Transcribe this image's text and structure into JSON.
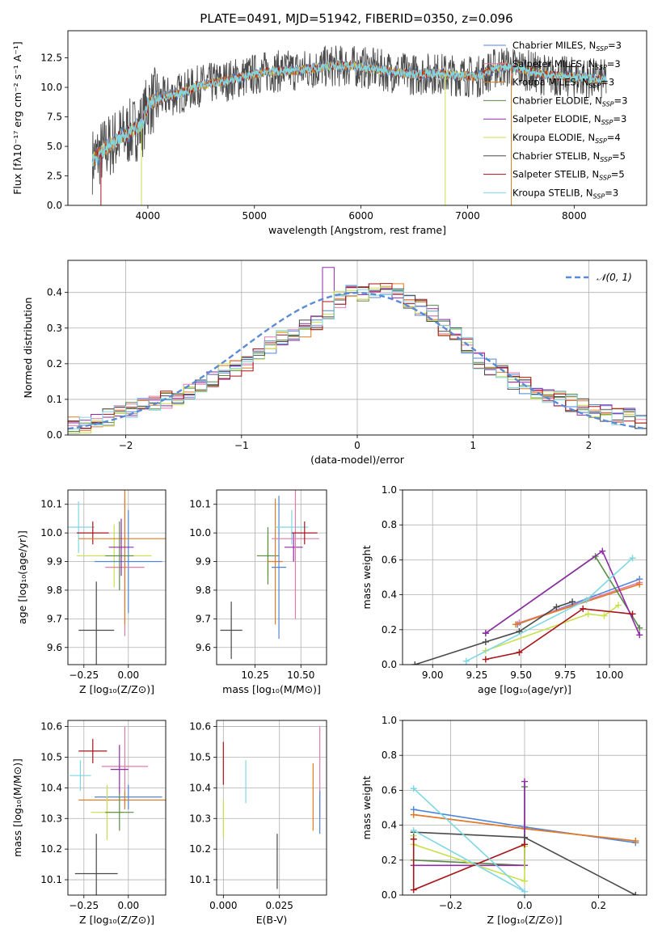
{
  "figure_title": "PLATE=0491, MJD=51942, FIBERID=0350, z=0.096",
  "colors": {
    "Chabrier MILES": "#4f86d8",
    "Salpeter MILES": "#e47aa8",
    "Kroupa MILES": "#e07b22",
    "Chabrier ELODIE": "#5a8a46",
    "Salpeter ELODIE": "#8f2aa8",
    "Kroupa ELODIE": "#c8e04c",
    "Chabrier STELIB": "#4a4a4a",
    "Salpeter STELIB": "#a8141a",
    "Kroupa STELIB": "#7ed7e2"
  },
  "chart_data": [
    {
      "id": "spectrum",
      "type": "line",
      "title": "PLATE=0491, MJD=51942, FIBERID=0350, z=0.096",
      "xlabel": "wavelength [Angstrom, rest frame]",
      "ylabel": "Flux [fλ10⁻¹⁷ erg cm⁻² s⁻¹ A⁻¹]",
      "xlim": [
        3250,
        8680
      ],
      "ylim": [
        0,
        14.8
      ],
      "xticks": [
        4000,
        5000,
        6000,
        7000,
        8000
      ],
      "yticks": [
        0.0,
        2.5,
        5.0,
        7.5,
        10.0,
        12.5
      ],
      "grid": false,
      "legend_position": "top-right",
      "legend": [
        "Chabrier MILES, N_SSP=3",
        "Salpeter MILES, N_SSP=3",
        "Kroupa MILES, N_SSP=3",
        "Chabrier ELODIE, N_SSP=3",
        "Salpeter ELODIE, N_SSP=3",
        "Kroupa ELODIE, N_SSP=4",
        "Chabrier STELIB, N_SSP=5",
        "Salpeter STELIB, N_SSP=5",
        "Kroupa STELIB, N_SSP=3"
      ],
      "continuum": {
        "x": [
          3480,
          3600,
          3750,
          3850,
          3950,
          4000,
          4100,
          4300,
          4500,
          4700,
          4900,
          5100,
          5300,
          5500,
          5700,
          5900,
          6100,
          6300,
          6500,
          6700,
          6900,
          7100,
          7300,
          7500,
          7700,
          7900,
          8100,
          8300
        ],
        "y": [
          3.8,
          4.8,
          5.8,
          6.3,
          6.9,
          8.6,
          9.0,
          9.5,
          10.2,
          10.5,
          10.9,
          11.3,
          11.4,
          11.5,
          11.8,
          11.8,
          11.6,
          11.3,
          11.1,
          11.2,
          11.0,
          10.9,
          11.8,
          11.6,
          11.1,
          10.9,
          10.8,
          10.6
        ]
      }
    },
    {
      "id": "residuals",
      "type": "bar",
      "xlabel": "(data-model)/error",
      "ylabel": "Normed distribution",
      "xlim": [
        -2.5,
        2.5
      ],
      "ylim": [
        0,
        0.49
      ],
      "xticks": [
        -2,
        -1,
        0,
        1,
        2
      ],
      "yticks": [
        0.0,
        0.1,
        0.2,
        0.3,
        0.4
      ],
      "grid": true,
      "legend_position": "top-right",
      "legend": [
        "𝒩(0, 1)"
      ],
      "histogram": {
        "bin_edges_start": -2.5,
        "bin_width": 0.1,
        "base": [
          0.03,
          0.03,
          0.04,
          0.05,
          0.06,
          0.07,
          0.08,
          0.09,
          0.1,
          0.1,
          0.12,
          0.14,
          0.16,
          0.18,
          0.19,
          0.2,
          0.22,
          0.25,
          0.27,
          0.28,
          0.3,
          0.32,
          0.35,
          0.38,
          0.4,
          0.4,
          0.41,
          0.41,
          0.4,
          0.38,
          0.36,
          0.34,
          0.3,
          0.28,
          0.25,
          0.21,
          0.19,
          0.17,
          0.15,
          0.14,
          0.12,
          0.11,
          0.1,
          0.09,
          0.08,
          0.07,
          0.06,
          0.05,
          0.05,
          0.04
        ]
      }
    },
    {
      "id": "age_vs_Z",
      "type": "scatter",
      "xlabel": "Z [log₁₀(Z/Z⊙)]",
      "ylabel": "age  [log₁₀(age/yr)]",
      "xlim": [
        -0.34,
        0.21
      ],
      "ylim": [
        9.54,
        10.15
      ],
      "xticks": [
        -0.25,
        0.0
      ],
      "yticks": [
        9.6,
        9.7,
        9.8,
        9.9,
        10.0,
        10.1
      ],
      "grid": true,
      "points": [
        {
          "s": "Chabrier STELIB",
          "x": -0.18,
          "y": 9.66,
          "ex": 0.1,
          "ey": 0.17
        },
        {
          "s": "Kroupa STELIB",
          "x": -0.28,
          "y": 10.02,
          "ex": 0.09,
          "ey": 0.09
        },
        {
          "s": "Salpeter STELIB",
          "x": -0.2,
          "y": 10.0,
          "ex": 0.09,
          "ey": 0.04
        },
        {
          "s": "Kroupa ELODIE",
          "x": -0.08,
          "y": 9.92,
          "ex": 0.21,
          "ey": 0.11
        },
        {
          "s": "Chabrier MILES",
          "x": 0.0,
          "y": 9.9,
          "ex": 0.19,
          "ey": 0.18
        },
        {
          "s": "Salpeter MILES",
          "x": -0.02,
          "y": 9.88,
          "ex": 0.11,
          "ey": 0.24
        },
        {
          "s": "Kroupa MILES",
          "x": -0.02,
          "y": 9.98,
          "ex": 0.26,
          "ey": 0.3
        },
        {
          "s": "Chabrier ELODIE",
          "x": -0.05,
          "y": 9.92,
          "ex": 0.08,
          "ey": 0.12
        },
        {
          "s": "Salpeter ELODIE",
          "x": -0.04,
          "y": 9.95,
          "ex": 0.07,
          "ey": 0.1
        }
      ]
    },
    {
      "id": "age_vs_mass",
      "type": "scatter",
      "xlabel": "mass [log₁₀(M/M⊙)]",
      "xlim": [
        10.04,
        10.64
      ],
      "ylim": [
        9.54,
        10.15
      ],
      "xticks": [
        10.25,
        10.5
      ],
      "yticks": [
        9.6,
        9.7,
        9.8,
        9.9,
        10.0,
        10.1
      ],
      "grid": true,
      "points": [
        {
          "s": "Chabrier STELIB",
          "x": 10.12,
          "y": 9.66,
          "ex": 0.06,
          "ey": 0.1
        },
        {
          "s": "Kroupa ELODIE",
          "x": 10.32,
          "y": 9.92,
          "ex": 0.06,
          "ey": 0.07
        },
        {
          "s": "Chabrier ELODIE",
          "x": 10.32,
          "y": 9.92,
          "ex": 0.06,
          "ey": 0.1
        },
        {
          "s": "Kroupa MILES",
          "x": 10.36,
          "y": 9.9,
          "ex": 0.04,
          "ey": 0.22
        },
        {
          "s": "Chabrier MILES",
          "x": 10.38,
          "y": 9.88,
          "ex": 0.04,
          "ey": 0.25
        },
        {
          "s": "Kroupa STELIB",
          "x": 10.45,
          "y": 10.02,
          "ex": 0.09,
          "ey": 0.06
        },
        {
          "s": "Salpeter ELODIE",
          "x": 10.46,
          "y": 9.95,
          "ex": 0.05,
          "ey": 0.05
        },
        {
          "s": "Salpeter MILES",
          "x": 10.47,
          "y": 9.98,
          "ex": 0.13,
          "ey": 0.28
        },
        {
          "s": "Salpeter STELIB",
          "x": 10.52,
          "y": 10.0,
          "ex": 0.07,
          "ey": 0.04
        }
      ]
    },
    {
      "id": "massweight_vs_age",
      "type": "line",
      "xlabel": "age  [log₁₀(age/yr)]",
      "ylabel": "mass weight",
      "xlim": [
        8.83,
        10.21
      ],
      "ylim": [
        0.0,
        1.0
      ],
      "xticks": [
        9.0,
        9.25,
        9.5,
        9.75,
        10.0
      ],
      "yticks": [
        0.0,
        0.2,
        0.4,
        0.6,
        0.8,
        1.0
      ],
      "grid": true,
      "series": [
        {
          "s": "Chabrier MILES",
          "x": [
            9.48,
            10.17
          ],
          "y": [
            0.23,
            0.49
          ]
        },
        {
          "s": "Salpeter MILES",
          "x": [
            9.49,
            10.17
          ],
          "y": [
            0.24,
            0.47
          ]
        },
        {
          "s": "Kroupa MILES",
          "x": [
            9.47,
            10.17
          ],
          "y": [
            0.23,
            0.46
          ]
        },
        {
          "s": "Chabrier ELODIE",
          "x": [
            9.3,
            9.92,
            10.17
          ],
          "y": [
            0.18,
            0.62,
            0.21
          ]
        },
        {
          "s": "Salpeter ELODIE",
          "x": [
            9.3,
            9.96,
            10.17
          ],
          "y": [
            0.18,
            0.65,
            0.17
          ]
        },
        {
          "s": "Kroupa ELODIE",
          "x": [
            9.3,
            9.88,
            9.97,
            10.05
          ],
          "y": [
            0.08,
            0.29,
            0.28,
            0.34
          ]
        },
        {
          "s": "Chabrier STELIB",
          "x": [
            8.9,
            9.3,
            9.49,
            9.7,
            9.79
          ],
          "y": [
            0.0,
            0.13,
            0.19,
            0.33,
            0.36
          ]
        },
        {
          "s": "Salpeter STELIB",
          "x": [
            9.3,
            9.49,
            9.85,
            10.13
          ],
          "y": [
            0.03,
            0.07,
            0.32,
            0.29
          ]
        },
        {
          "s": "Kroupa STELIB",
          "x": [
            9.19,
            9.87,
            10.13
          ],
          "y": [
            0.02,
            0.37,
            0.61
          ]
        }
      ]
    },
    {
      "id": "mass_vs_Z",
      "type": "scatter",
      "xlabel": "Z [log₁₀(Z/Z⊙)]",
      "ylabel": "mass [log₁₀(M/M⊙)]",
      "xlim": [
        -0.34,
        0.21
      ],
      "ylim": [
        10.05,
        10.62
      ],
      "xticks": [
        -0.25,
        0.0
      ],
      "yticks": [
        10.1,
        10.2,
        10.3,
        10.4,
        10.5,
        10.6
      ],
      "grid": true,
      "points": [
        {
          "s": "Chabrier STELIB",
          "x": -0.18,
          "y": 10.12,
          "ex": 0.12,
          "ey": 0.13
        },
        {
          "s": "Salpeter STELIB",
          "x": -0.2,
          "y": 10.52,
          "ex": 0.08,
          "ey": 0.04
        },
        {
          "s": "Kroupa STELIB",
          "x": -0.27,
          "y": 10.44,
          "ex": 0.06,
          "ey": 0.05
        },
        {
          "s": "Salpeter MILES",
          "x": -0.02,
          "y": 10.47,
          "ex": 0.13,
          "ey": 0.13
        },
        {
          "s": "Salpeter ELODIE",
          "x": -0.05,
          "y": 10.46,
          "ex": 0.05,
          "ey": 0.08
        },
        {
          "s": "Chabrier MILES",
          "x": 0.0,
          "y": 10.37,
          "ex": 0.19,
          "ey": 0.04
        },
        {
          "s": "Kroupa MILES",
          "x": -0.02,
          "y": 10.36,
          "ex": 0.26,
          "ey": 0.03
        },
        {
          "s": "Kroupa ELODIE",
          "x": -0.12,
          "y": 10.32,
          "ex": 0.09,
          "ey": 0.09
        },
        {
          "s": "Chabrier ELODIE",
          "x": -0.05,
          "y": 10.32,
          "ex": 0.08,
          "ey": 0.06
        }
      ]
    },
    {
      "id": "mass_vs_ebv",
      "type": "scatter",
      "xlabel": "E(B-V)",
      "xlim": [
        -0.003,
        0.046
      ],
      "ylim": [
        10.05,
        10.62
      ],
      "xticks": [
        0.0,
        0.025
      ],
      "yticks": [
        10.1,
        10.2,
        10.3,
        10.4,
        10.5,
        10.6
      ],
      "grid": true,
      "points": [
        {
          "s": "Salpeter STELIB",
          "x": 0.0,
          "y": 10.48,
          "ex": 0.0,
          "ey": 0.07
        },
        {
          "s": "Kroupa ELODIE",
          "x": 0.0,
          "y": 10.3,
          "ex": 0.0,
          "ey": 0.06
        },
        {
          "s": "Kroupa STELIB",
          "x": 0.01,
          "y": 10.42,
          "ex": 0.0,
          "ey": 0.07
        },
        {
          "s": "Chabrier STELIB",
          "x": 0.024,
          "y": 10.16,
          "ex": 0.0,
          "ey": 0.09
        },
        {
          "s": "Kroupa MILES",
          "x": 0.04,
          "y": 10.37,
          "ex": 0.0,
          "ey": 0.11
        },
        {
          "s": "Salpeter MILES",
          "x": 0.043,
          "y": 10.45,
          "ex": 0.0,
          "ey": 0.15
        },
        {
          "s": "Chabrier MILES",
          "x": 0.043,
          "y": 10.32,
          "ex": 0.0,
          "ey": 0.07
        }
      ]
    },
    {
      "id": "massweight_vs_Z",
      "type": "line",
      "xlabel": "Z [log₁₀(Z/Z⊙)]",
      "ylabel": "mass weight",
      "xlim": [
        -0.33,
        0.33
      ],
      "ylim": [
        0.0,
        1.0
      ],
      "xticks": [
        -0.2,
        0.0,
        0.2
      ],
      "yticks": [
        0.0,
        0.2,
        0.4,
        0.6,
        0.8,
        1.0
      ],
      "grid": true,
      "series": [
        {
          "s": "Chabrier MILES",
          "x": [
            -0.3,
            0.0,
            0.3
          ],
          "y": [
            0.49,
            0.39,
            0.3
          ]
        },
        {
          "s": "Salpeter MILES",
          "x": [
            -0.3,
            0.0,
            0.3
          ],
          "y": [
            0.46,
            0.38,
            0.31
          ]
        },
        {
          "s": "Kroupa MILES",
          "x": [
            -0.3,
            0.0,
            0.3
          ],
          "y": [
            0.46,
            0.38,
            0.31
          ]
        },
        {
          "s": "Chabrier ELODIE",
          "x": [
            -0.3,
            0.0,
            0.0
          ],
          "y": [
            0.2,
            0.17,
            0.62
          ]
        },
        {
          "s": "Salpeter ELODIE",
          "x": [
            -0.3,
            0.0,
            0.0
          ],
          "y": [
            0.17,
            0.17,
            0.65
          ]
        },
        {
          "s": "Kroupa ELODIE",
          "x": [
            -0.3,
            -0.3,
            0.0,
            0.0
          ],
          "y": [
            0.34,
            0.29,
            0.08,
            0.28
          ]
        },
        {
          "s": "Chabrier STELIB",
          "x": [
            -0.3,
            0.0,
            0.3
          ],
          "y": [
            0.36,
            0.33,
            0.0
          ]
        },
        {
          "s": "Salpeter STELIB",
          "x": [
            -0.3,
            -0.3,
            0.0
          ],
          "y": [
            0.32,
            0.03,
            0.29
          ]
        },
        {
          "s": "Kroupa STELIB",
          "x": [
            -0.3,
            0.0,
            -0.3
          ],
          "y": [
            0.61,
            0.02,
            0.37
          ]
        }
      ]
    }
  ]
}
